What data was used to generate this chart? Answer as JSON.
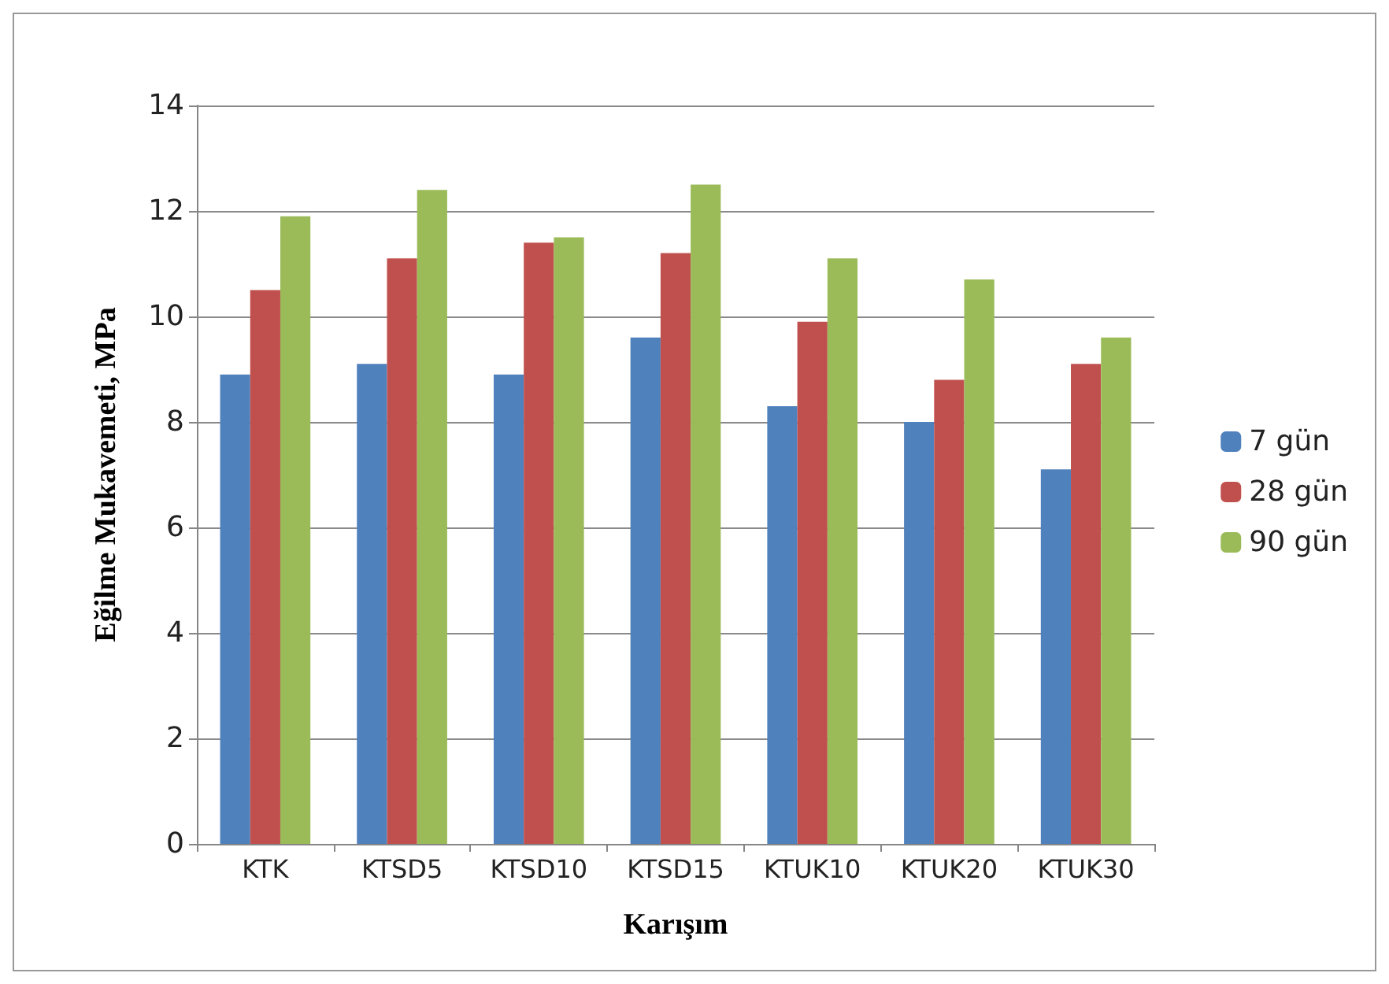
{
  "chart_data": {
    "type": "bar",
    "xlabel": "Karışım",
    "ylabel": "Eğilme Mukavemeti, MPa",
    "categories": [
      "KTK",
      "KTSD5",
      "KTSD10",
      "KTSD15",
      "KTUK10",
      "KTUK20",
      "KTUK30"
    ],
    "series": [
      {
        "name": "7 gün",
        "color": "#4f81bd",
        "values": [
          8.9,
          9.1,
          8.9,
          9.6,
          8.3,
          8.0,
          7.1
        ]
      },
      {
        "name": "28 gün",
        "color": "#c0504d",
        "values": [
          10.5,
          11.1,
          11.4,
          11.2,
          9.9,
          8.8,
          9.1
        ]
      },
      {
        "name": "90 gün",
        "color": "#9bbb59",
        "values": [
          11.9,
          12.4,
          11.5,
          12.5,
          11.1,
          10.7,
          9.6
        ]
      }
    ],
    "ylim": [
      0,
      14
    ],
    "yticks": [
      0,
      2,
      4,
      6,
      8,
      10,
      12,
      14
    ],
    "grid": "y",
    "legend": "right"
  }
}
